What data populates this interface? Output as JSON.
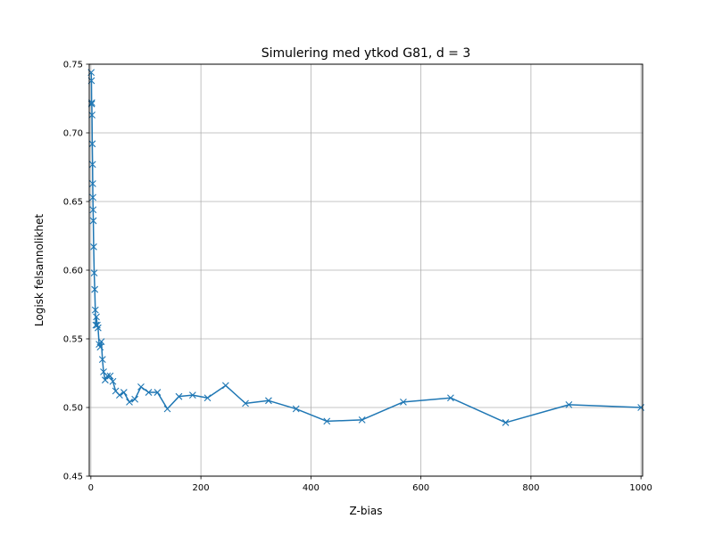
{
  "chart_data": {
    "type": "line",
    "title": "Simulering med ytkod G81, d = 3",
    "xlabel": "Z-bias",
    "ylabel": "Logisk felsannolikhet",
    "xlim": [
      -3,
      1003
    ],
    "ylim": [
      0.45,
      0.75
    ],
    "xticks": [
      0,
      200,
      400,
      600,
      800,
      1000
    ],
    "yticks": [
      0.45,
      0.5,
      0.55,
      0.6,
      0.65,
      0.7,
      0.75
    ],
    "xtick_labels": [
      "0",
      "200",
      "400",
      "600",
      "800",
      "1000"
    ],
    "ytick_labels": [
      "0.45",
      "0.50",
      "0.55",
      "0.60",
      "0.65",
      "0.70",
      "0.75"
    ],
    "grid": true,
    "marker": "x",
    "color": "#1f77b4",
    "series": [
      {
        "name": "",
        "x": [
          0.5,
          1.0,
          1.3,
          1.6,
          2.0,
          2.5,
          3.0,
          3.3,
          3.6,
          4.0,
          4.4,
          5.0,
          6.0,
          7.0,
          8.0,
          9.0,
          10.0,
          11.5,
          13.0,
          15.0,
          17.0,
          19.0,
          21.0,
          23.0,
          26.0,
          30.0,
          35.0,
          40.0,
          45.0,
          52.0,
          60.0,
          70.0,
          80.0,
          91.0,
          105.0,
          121.0,
          139.0,
          160.0,
          185.0,
          212.0,
          245.0,
          281.0,
          323.0,
          373.0,
          429.0,
          493.0,
          568.0,
          654.0,
          754.0,
          869.0,
          1000.0
        ],
        "y": [
          0.744,
          0.738,
          0.721,
          0.722,
          0.713,
          0.692,
          0.677,
          0.663,
          0.653,
          0.644,
          0.636,
          0.617,
          0.598,
          0.586,
          0.571,
          0.56,
          0.566,
          0.56,
          0.558,
          0.546,
          0.544,
          0.548,
          0.535,
          0.526,
          0.52,
          0.523,
          0.523,
          0.519,
          0.512,
          0.509,
          0.511,
          0.504,
          0.506,
          0.515,
          0.511,
          0.511,
          0.499,
          0.508,
          0.509,
          0.507,
          0.516,
          0.503,
          0.505,
          0.499,
          0.49,
          0.491,
          0.504,
          0.507,
          0.489,
          0.502,
          0.5
        ]
      }
    ]
  }
}
